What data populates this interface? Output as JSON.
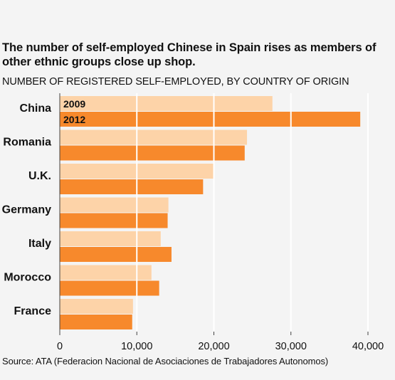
{
  "title": "The number of self-employed Chinese in Spain rises as members of other ethnic groups close up shop.",
  "subtitle": "NUMBER OF REGISTERED SELF-EMPLOYED, BY COUNTRY OF ORIGIN",
  "source": "Source: ATA (Federacion Nacional de Asociaciones de Trabajadores Autonomos)",
  "colors": {
    "series_2009": "#fdd3a8",
    "series_2012": "#f7892c",
    "gridline": "#ffffff",
    "axis": "#444444",
    "background": "#f4f4f4"
  },
  "chart_data": {
    "type": "bar",
    "orientation": "horizontal",
    "title": "The number of self-employed Chinese in Spain rises as members of other ethnic groups close up shop.",
    "subtitle": "NUMBER OF REGISTERED SELF-EMPLOYED, BY COUNTRY OF ORIGIN",
    "categories": [
      "China",
      "Romania",
      "U.K.",
      "Germany",
      "Italy",
      "Morocco",
      "France"
    ],
    "series": [
      {
        "name": "2009",
        "values": [
          27600,
          24300,
          20000,
          14100,
          13100,
          11900,
          9500
        ]
      },
      {
        "name": "2012",
        "values": [
          39000,
          24000,
          18600,
          14000,
          14500,
          12900,
          9400
        ]
      }
    ],
    "xlim": [
      0,
      40000
    ],
    "xticks": [
      0,
      10000,
      20000,
      30000,
      40000
    ],
    "xtick_labels": [
      "0",
      "10,000",
      "20,000",
      "30,000",
      "40,000"
    ],
    "xlabel": "",
    "ylabel": "",
    "grid": "vertical",
    "legend": "inside-first-category"
  }
}
